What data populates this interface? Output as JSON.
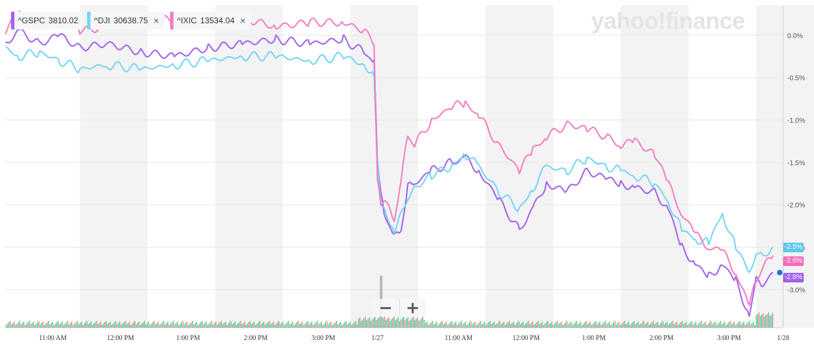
{
  "logo": "yahoo!finance",
  "tickers": [
    {
      "symbol": "^GSPC",
      "price": "3810.02",
      "color": "#a263eb",
      "closable": false
    },
    {
      "symbol": "^DJI",
      "price": "30638.75",
      "color": "#75d5f5",
      "closable": true
    },
    {
      "symbol": "^IXIC",
      "price": "13534.04",
      "color": "#f47dc1",
      "closable": true
    }
  ],
  "zoom": {
    "minus": "−",
    "plus": "+"
  },
  "close_glyph": "×",
  "badges": [
    {
      "text": "-2.5%",
      "color": "#5fc8ef"
    },
    {
      "text": "-2.6%",
      "color": "#f26eb8"
    },
    {
      "text": "-2.8%",
      "color": "#a263eb"
    }
  ],
  "chart_data": {
    "type": "line",
    "ylim": [
      -3.45,
      0.35
    ],
    "y_ticks": [
      "0.0%",
      "-0.5%",
      "-1.0%",
      "-1.5%",
      "-2.0%",
      "-2.5%",
      "-3.0%"
    ],
    "y_tick_values": [
      0.0,
      -0.5,
      -1.0,
      -1.5,
      -2.0,
      -2.5,
      -3.0
    ],
    "x_labels": [
      "11:00 AM",
      "12:00 PM",
      "1:00 PM",
      "2:00 PM",
      "3:00 PM",
      "1/27",
      "11:00 AM",
      "12:00 PM",
      "1:00 PM",
      "2:00 PM",
      "3:00 PM",
      "1/28"
    ],
    "x_label_positions": [
      0.7,
      1.7,
      2.7,
      3.7,
      4.7,
      5.5,
      6.7,
      7.7,
      8.7,
      9.7,
      10.7,
      11.5
    ],
    "x_range": [
      0,
      11.5
    ],
    "grid": true,
    "series": [
      {
        "name": "^GSPC",
        "color": "#a263eb",
        "x": [
          0,
          0.2,
          0.5,
          0.8,
          1.1,
          1.5,
          2.0,
          2.5,
          3.0,
          3.5,
          4.0,
          4.5,
          5.0,
          5.3,
          5.45,
          5.5,
          5.55,
          5.6,
          5.75,
          5.85,
          5.95,
          6.05,
          6.3,
          6.6,
          6.8,
          7.0,
          7.3,
          7.6,
          7.8,
          8.0,
          8.3,
          8.6,
          8.9,
          9.1,
          9.3,
          9.6,
          9.8,
          10.0,
          10.2,
          10.4,
          10.6,
          10.8,
          11.0,
          11.1,
          11.2,
          11.35
        ],
        "y": [
          -0.1,
          0.05,
          -0.1,
          0.0,
          -0.15,
          -0.1,
          -0.2,
          -0.25,
          -0.15,
          -0.1,
          -0.05,
          -0.1,
          -0.05,
          -0.2,
          -0.35,
          -1.45,
          -1.9,
          -2.1,
          -2.4,
          -2.3,
          -1.8,
          -1.75,
          -1.6,
          -1.5,
          -1.45,
          -1.6,
          -1.95,
          -2.3,
          -2.05,
          -1.75,
          -1.85,
          -1.6,
          -1.7,
          -1.75,
          -1.8,
          -1.85,
          -2.05,
          -2.5,
          -2.7,
          -2.85,
          -2.7,
          -2.9,
          -3.3,
          -2.9,
          -2.95,
          -2.8
        ]
      },
      {
        "name": "^DJI",
        "color": "#75d5f5",
        "x": [
          0,
          0.2,
          0.5,
          0.8,
          1.1,
          1.5,
          2.0,
          2.5,
          3.0,
          3.5,
          4.0,
          4.5,
          5.0,
          5.3,
          5.45,
          5.5,
          5.55,
          5.6,
          5.75,
          5.85,
          5.95,
          6.05,
          6.3,
          6.6,
          6.8,
          7.0,
          7.3,
          7.6,
          7.8,
          8.0,
          8.3,
          8.6,
          8.9,
          9.1,
          9.3,
          9.6,
          9.8,
          10.0,
          10.2,
          10.4,
          10.6,
          10.8,
          11.0,
          11.1,
          11.2,
          11.35
        ],
        "y": [
          -0.15,
          -0.25,
          -0.2,
          -0.3,
          -0.4,
          -0.35,
          -0.4,
          -0.35,
          -0.3,
          -0.25,
          -0.25,
          -0.3,
          -0.25,
          -0.35,
          -0.45,
          -1.5,
          -1.95,
          -2.05,
          -2.3,
          -2.1,
          -1.9,
          -1.8,
          -1.65,
          -1.55,
          -1.4,
          -1.55,
          -1.85,
          -2.05,
          -1.8,
          -1.55,
          -1.6,
          -1.45,
          -1.55,
          -1.6,
          -1.65,
          -1.75,
          -1.95,
          -2.3,
          -2.4,
          -2.45,
          -2.1,
          -2.5,
          -2.8,
          -2.55,
          -2.6,
          -2.5
        ]
      },
      {
        "name": "^IXIC",
        "color": "#f47dc1",
        "x": [
          0,
          0.2,
          0.5,
          0.8,
          1.1,
          1.5,
          2.0,
          2.5,
          3.0,
          3.5,
          4.0,
          4.5,
          5.0,
          5.3,
          5.45,
          5.5,
          5.55,
          5.6,
          5.75,
          5.85,
          5.95,
          6.05,
          6.3,
          6.6,
          6.8,
          7.0,
          7.3,
          7.6,
          7.8,
          8.0,
          8.3,
          8.6,
          8.9,
          9.1,
          9.3,
          9.6,
          9.8,
          10.0,
          10.2,
          10.4,
          10.6,
          10.8,
          11.0,
          11.1,
          11.2,
          11.35
        ],
        "y": [
          0.05,
          0.25,
          0.15,
          0.2,
          0.05,
          0.1,
          0.15,
          0.2,
          0.2,
          0.2,
          0.1,
          0.15,
          0.15,
          0.05,
          -0.1,
          -1.7,
          -2.0,
          -1.95,
          -2.2,
          -1.7,
          -1.2,
          -1.3,
          -1.0,
          -0.85,
          -0.8,
          -0.95,
          -1.3,
          -1.6,
          -1.35,
          -1.2,
          -1.05,
          -1.1,
          -1.2,
          -1.3,
          -1.25,
          -1.4,
          -1.75,
          -2.1,
          -2.35,
          -2.5,
          -2.55,
          -2.8,
          -3.2,
          -2.9,
          -2.75,
          -2.6
        ]
      }
    ]
  }
}
